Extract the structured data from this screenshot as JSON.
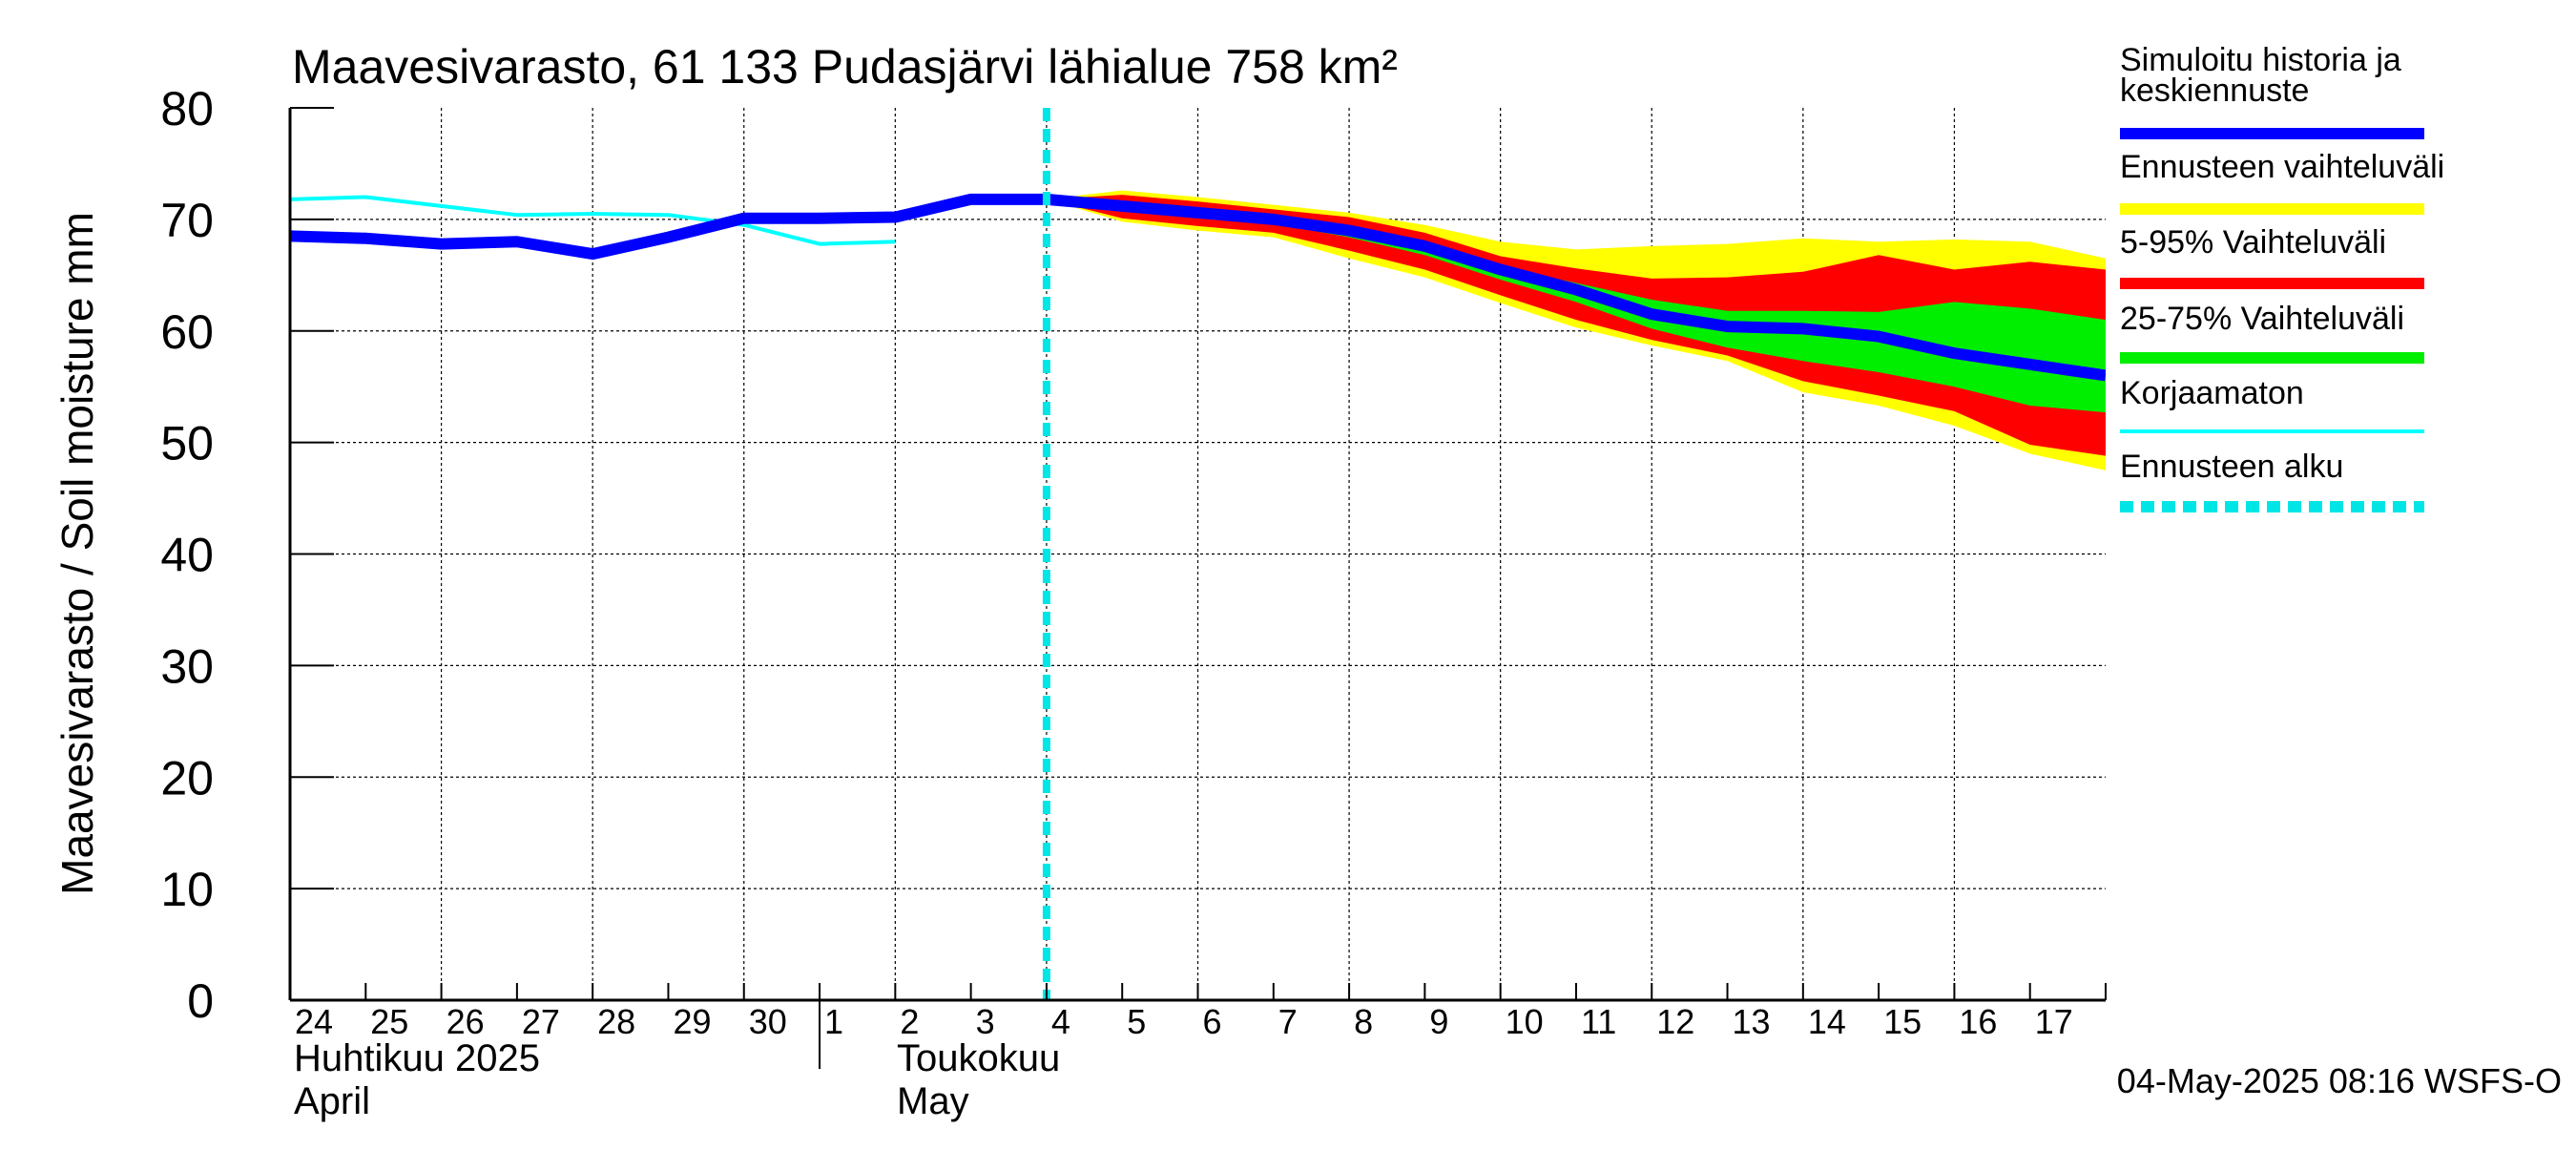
{
  "chart_data": {
    "type": "area",
    "title": "Maavesivarasto, 61 133 Pudasjärvi lähialue 758 km²",
    "ylabel": "Maavesivarasto / Soil moisture   mm",
    "ylim": [
      0,
      80
    ],
    "y_ticks": [
      "0",
      "10",
      "20",
      "30",
      "40",
      "50",
      "60",
      "70",
      "80"
    ],
    "x_tick_labels": [
      "24",
      "25",
      "26",
      "27",
      "28",
      "29",
      "30",
      "1",
      "2",
      "3",
      "4",
      "5",
      "6",
      "7",
      "8",
      "9",
      "10",
      "11",
      "12",
      "13",
      "14",
      "15",
      "16",
      "17"
    ],
    "month_labels": {
      "april_fi": "Huhtikuu  2025",
      "april_en": "April",
      "may_fi": "Toukokuu",
      "may_en": "May"
    },
    "grid": true,
    "legend_position": "right",
    "legend": [
      {
        "label": "Simuloitu historia ja keskiennuste",
        "color": "#0000ff",
        "style": "thick"
      },
      {
        "label": "Ennusteen vaihteluväli",
        "color": "#ffff00",
        "style": "band"
      },
      {
        "label": "5-95% Vaihteluväli",
        "color": "#ff0000",
        "style": "band"
      },
      {
        "label": "25-75% Vaihteluväli",
        "color": "#00ee00",
        "style": "band"
      },
      {
        "label": "Korjaamaton",
        "color": "#00ffff",
        "style": "thin"
      },
      {
        "label": "Ennusteen alku",
        "color": "#00e5e5",
        "style": "dashed"
      }
    ],
    "forecast_start_x": 10.0,
    "series": [
      {
        "name": "Simuloitu historia ja keskiennuste",
        "color": "#0000ff",
        "x": [
          0,
          1,
          2,
          3,
          4,
          5,
          6,
          7,
          8,
          9,
          10,
          11,
          12,
          13,
          14,
          15,
          16,
          17,
          18,
          19,
          20,
          21,
          22,
          23,
          24
        ],
        "values": [
          68.5,
          68.3,
          67.8,
          68.0,
          66.9,
          68.4,
          70.1,
          70.1,
          70.2,
          71.8,
          71.8,
          71.2,
          70.6,
          70.0,
          69.0,
          67.6,
          65.5,
          63.7,
          61.5,
          60.4,
          60.2,
          59.5,
          58.0,
          57.0,
          56.0
        ]
      },
      {
        "name": "Korjaamaton",
        "color": "#00ffff",
        "x": [
          0,
          1,
          2,
          3,
          4,
          5,
          6,
          7,
          8
        ],
        "values": [
          71.8,
          72.0,
          71.2,
          70.4,
          70.5,
          70.4,
          69.5,
          67.8,
          68.0
        ]
      }
    ],
    "bands": [
      {
        "name": "Ennusteen vaihteluväli",
        "color": "#ffff00",
        "x": [
          10,
          11,
          12,
          13,
          14,
          15,
          16,
          17,
          18,
          19,
          20,
          21,
          22,
          23,
          24
        ],
        "upper": [
          71.8,
          72.6,
          72.0,
          71.3,
          70.6,
          69.5,
          68.0,
          67.3,
          67.6,
          67.8,
          68.3,
          68.0,
          68.2,
          68.0,
          66.5
        ],
        "lower": [
          71.8,
          69.8,
          69.0,
          68.4,
          66.5,
          64.8,
          62.5,
          60.3,
          58.7,
          57.3,
          54.5,
          53.3,
          51.5,
          49.0,
          47.5
        ]
      },
      {
        "name": "5-95% Vaihteluväli",
        "color": "#ff0000",
        "x": [
          10,
          11,
          12,
          13,
          14,
          15,
          16,
          17,
          18,
          19,
          20,
          21,
          22,
          23,
          24
        ],
        "upper": [
          71.8,
          72.2,
          71.6,
          70.9,
          70.2,
          68.8,
          66.7,
          65.6,
          64.7,
          64.8,
          65.3,
          66.8,
          65.5,
          66.2,
          65.5
        ],
        "lower": [
          71.8,
          70.1,
          69.4,
          68.8,
          67.2,
          65.5,
          63.2,
          61.0,
          59.2,
          57.8,
          55.5,
          54.2,
          52.8,
          49.8,
          48.8
        ]
      },
      {
        "name": "25-75% Vaihteluväli",
        "color": "#00ee00",
        "x": [
          10,
          11,
          12,
          13,
          14,
          15,
          16,
          17,
          18,
          19,
          20,
          21,
          22,
          23,
          24
        ],
        "upper": [
          71.8,
          71.5,
          71.0,
          70.3,
          69.4,
          68.0,
          65.8,
          64.3,
          62.8,
          61.8,
          61.8,
          61.7,
          62.6,
          62.0,
          61.0
        ],
        "lower": [
          71.8,
          70.8,
          70.2,
          69.6,
          68.4,
          66.8,
          64.6,
          62.6,
          60.2,
          58.5,
          57.3,
          56.3,
          55.0,
          53.3,
          52.7
        ]
      }
    ]
  },
  "footer": {
    "timestamp": "04-May-2025 08:16 WSFS-O"
  }
}
